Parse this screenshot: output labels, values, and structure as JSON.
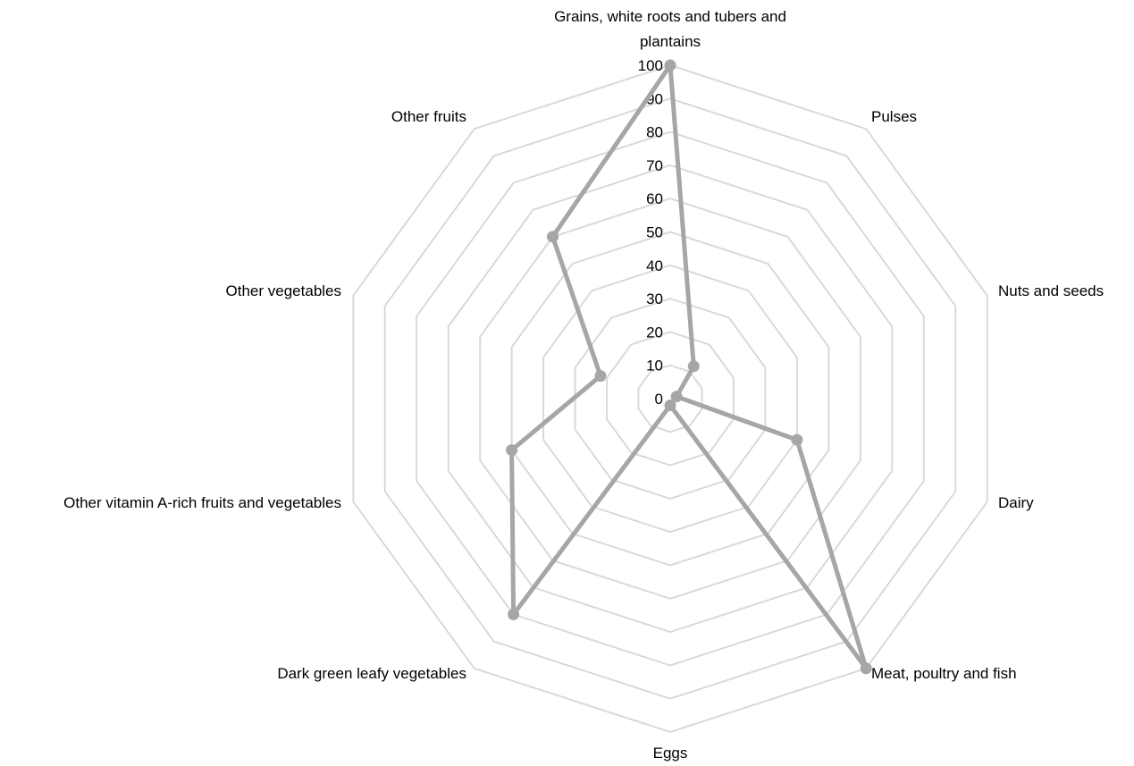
{
  "chart_data": {
    "type": "radar",
    "categories": [
      "Grains, white roots and tubers and plantains",
      "Pulses",
      "Nuts and seeds",
      "Dairy",
      "Meat, poultry and fish",
      "Eggs",
      "Dark green leafy vegetables",
      "Other vitamin A-rich fruits and vegetables",
      "Other vegetables",
      "Other fruits"
    ],
    "series": [
      {
        "values": [
          100,
          12,
          2,
          40,
          100,
          2,
          80,
          50,
          22,
          60
        ]
      }
    ],
    "rlim": [
      0,
      100
    ],
    "ticks": [
      0,
      10,
      20,
      30,
      40,
      50,
      60,
      70,
      80,
      90,
      100
    ],
    "grid": true,
    "legend": "none",
    "colors": {
      "series": "#a6a6a6",
      "grid": "#d9d9d9",
      "text": "#000000"
    }
  }
}
